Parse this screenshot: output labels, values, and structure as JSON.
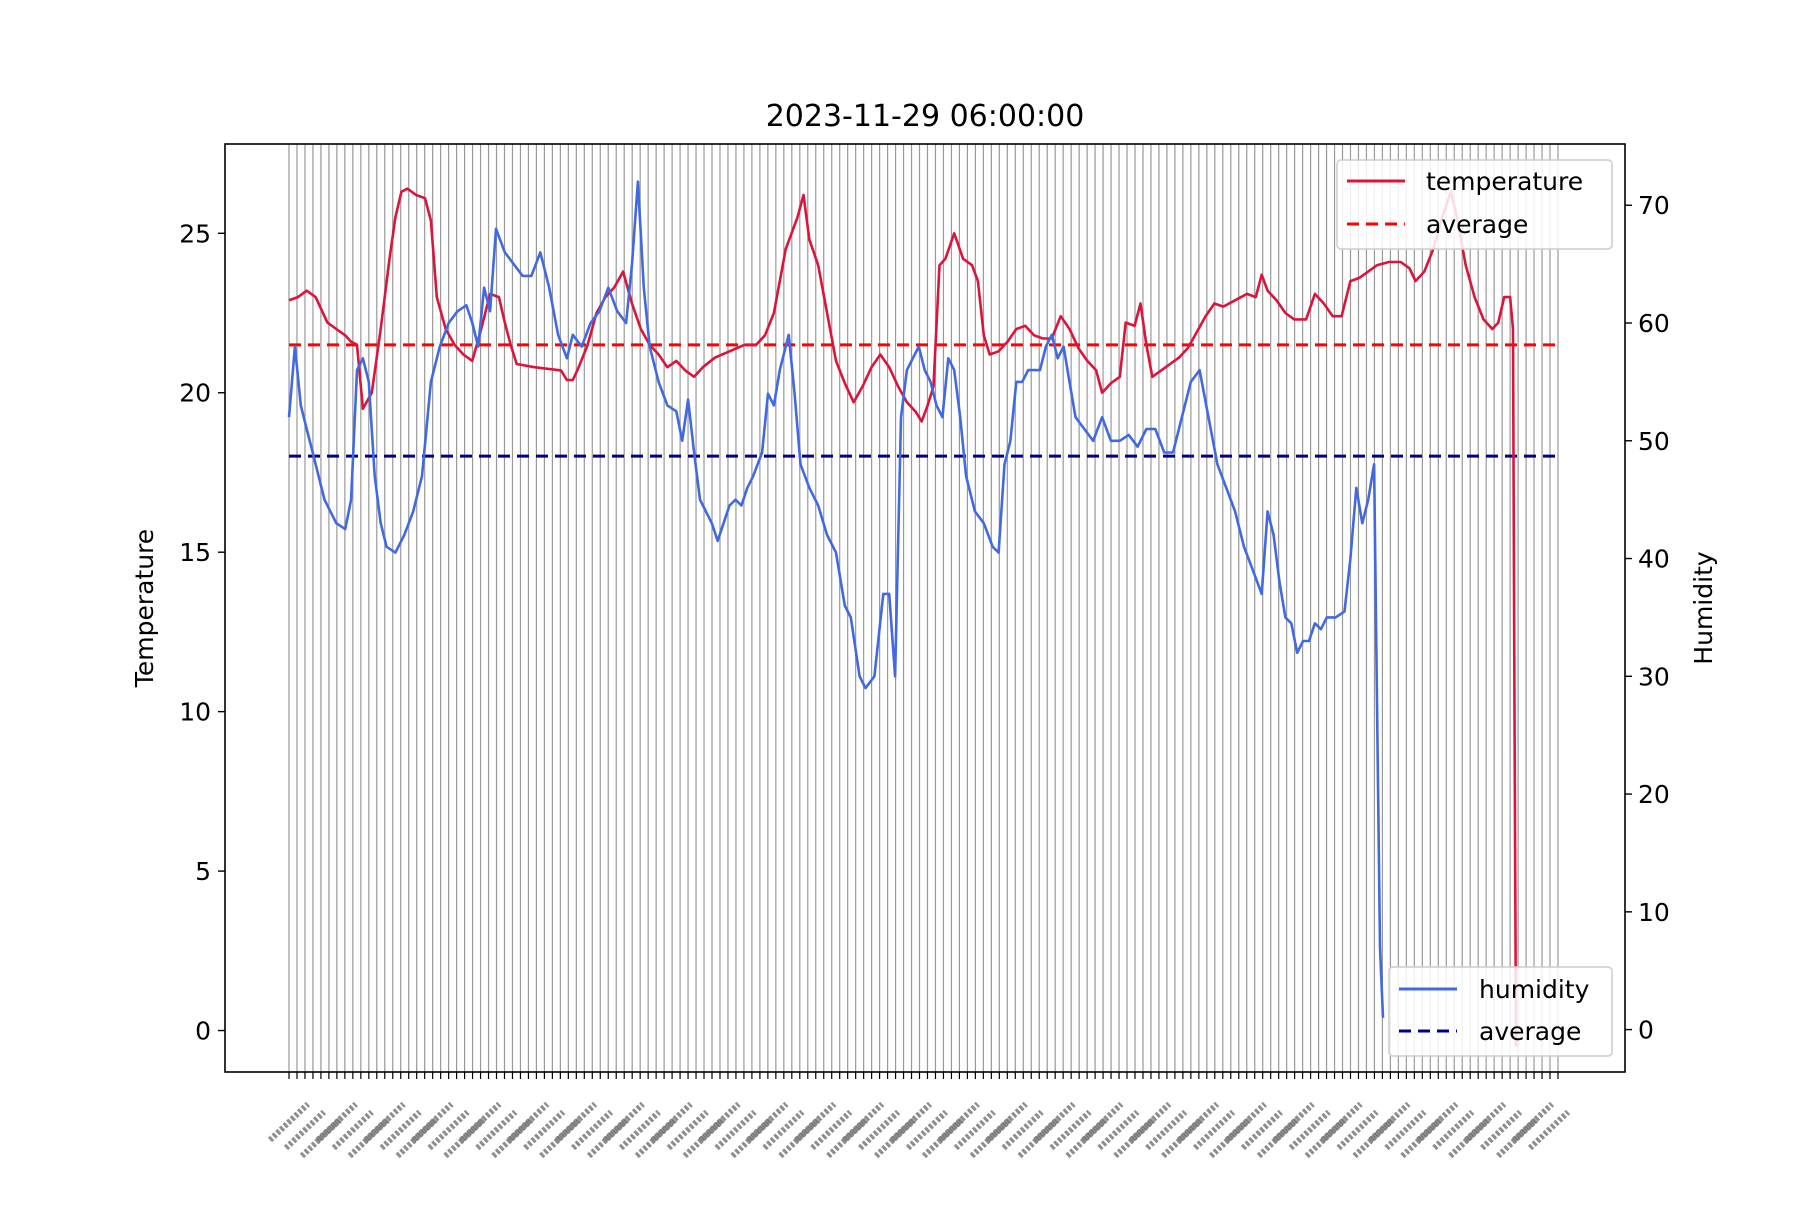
{
  "chart_data": {
    "type": "line",
    "title": "2023-11-29 06:00:00",
    "ylabel": "Temperature",
    "y2label": "Humidity",
    "xlabel": "",
    "ylim": [
      -1.3,
      27.8
    ],
    "y2lim": [
      -3.6,
      75.2
    ],
    "yticks": [
      0,
      5,
      10,
      15,
      20,
      25
    ],
    "y2ticks": [
      0,
      10,
      20,
      30,
      40,
      50,
      60,
      70
    ],
    "grid": "vertical lines at each x tick",
    "x_tick_labels": "dense overlapping time labels, illegible",
    "legend_primary": {
      "position": "upper-right",
      "entries": [
        {
          "label": "temperature",
          "color": "#dc143c",
          "style": "solid"
        },
        {
          "label": "average",
          "color": "#ff0000",
          "style": "dashed"
        }
      ]
    },
    "legend_secondary": {
      "position": "lower-right",
      "entries": [
        {
          "label": "humidity",
          "color": "#4169e1",
          "style": "solid"
        },
        {
          "label": "average",
          "color": "#00008b",
          "style": "dashed"
        }
      ]
    },
    "colors": {
      "temperature": "#dc143c",
      "temperature_avg": "#ff0000",
      "humidity": "#4169e1",
      "humidity_avg": "#00008b",
      "grid": "#999999"
    },
    "series": [
      {
        "name": "temperature",
        "axis": "left",
        "color": "#dc143c",
        "points": [
          [
            0,
            22.9
          ],
          [
            3,
            23
          ],
          [
            6,
            23.2
          ],
          [
            9,
            23
          ],
          [
            11,
            22.6
          ],
          [
            13,
            22.2
          ],
          [
            16,
            22
          ],
          [
            19,
            21.8
          ],
          [
            21,
            21.6
          ],
          [
            23,
            21.5
          ],
          [
            25,
            19.5
          ],
          [
            28,
            20
          ],
          [
            31,
            22
          ],
          [
            34,
            24.2
          ],
          [
            36,
            25.5
          ],
          [
            38,
            26.3
          ],
          [
            40,
            26.4
          ],
          [
            43,
            26.2
          ],
          [
            46,
            26.1
          ],
          [
            48,
            25.4
          ],
          [
            50,
            23
          ],
          [
            53,
            22
          ],
          [
            56,
            21.5
          ],
          [
            59,
            21.2
          ],
          [
            62,
            21
          ],
          [
            65,
            22
          ],
          [
            68,
            23.1
          ],
          [
            71,
            23
          ],
          [
            73,
            22.2
          ],
          [
            75,
            21.5
          ],
          [
            77,
            20.9
          ],
          [
            83,
            20.8
          ],
          [
            92,
            20.7
          ],
          [
            94,
            20.4
          ],
          [
            96,
            20.4
          ],
          [
            98,
            20.8
          ],
          [
            101,
            21.5
          ],
          [
            104,
            22.5
          ],
          [
            107,
            23
          ],
          [
            110,
            23.3
          ],
          [
            113,
            23.8
          ],
          [
            116,
            22.8
          ],
          [
            119,
            22
          ],
          [
            122,
            21.5
          ],
          [
            125,
            21.2
          ],
          [
            128,
            20.8
          ],
          [
            131,
            21
          ],
          [
            134,
            20.7
          ],
          [
            137,
            20.5
          ],
          [
            140,
            20.8
          ],
          [
            144,
            21.1
          ],
          [
            149,
            21.3
          ],
          [
            154,
            21.5
          ],
          [
            158,
            21.5
          ],
          [
            161,
            21.8
          ],
          [
            164,
            22.5
          ],
          [
            168,
            24.5
          ],
          [
            172,
            25.5
          ],
          [
            174,
            26.2
          ],
          [
            176,
            24.8
          ],
          [
            179,
            24
          ],
          [
            182,
            22.5
          ],
          [
            185,
            21
          ],
          [
            188,
            20.3
          ],
          [
            191,
            19.7
          ],
          [
            194,
            20.2
          ],
          [
            197,
            20.8
          ],
          [
            200,
            21.2
          ],
          [
            203,
            20.8
          ],
          [
            206,
            20.2
          ],
          [
            209,
            19.7
          ],
          [
            212,
            19.4
          ],
          [
            214,
            19.1
          ],
          [
            216,
            19.6
          ],
          [
            218,
            20.2
          ],
          [
            220,
            24
          ],
          [
            222,
            24.2
          ],
          [
            225,
            25
          ],
          [
            228,
            24.2
          ],
          [
            231,
            24
          ],
          [
            233,
            23.5
          ],
          [
            235,
            21.8
          ],
          [
            237,
            21.2
          ],
          [
            240,
            21.3
          ],
          [
            243,
            21.6
          ],
          [
            246,
            22
          ],
          [
            249,
            22.1
          ],
          [
            252,
            21.8
          ],
          [
            255,
            21.7
          ],
          [
            258,
            21.7
          ],
          [
            261,
            22.4
          ],
          [
            264,
            22
          ],
          [
            267,
            21.4
          ],
          [
            270,
            21
          ],
          [
            273,
            20.7
          ],
          [
            275,
            20
          ],
          [
            278,
            20.3
          ],
          [
            281,
            20.5
          ],
          [
            283,
            22.2
          ],
          [
            286,
            22.1
          ],
          [
            288,
            22.8
          ],
          [
            290,
            21.5
          ],
          [
            292,
            20.5
          ],
          [
            295,
            20.7
          ],
          [
            298,
            20.9
          ],
          [
            301,
            21.1
          ],
          [
            304,
            21.4
          ],
          [
            307,
            21.9
          ],
          [
            310,
            22.4
          ],
          [
            313,
            22.8
          ],
          [
            316,
            22.7
          ],
          [
            320,
            22.9
          ],
          [
            324,
            23.1
          ],
          [
            327,
            23
          ],
          [
            329,
            23.7
          ],
          [
            331,
            23.2
          ],
          [
            334,
            22.9
          ],
          [
            337,
            22.5
          ],
          [
            340,
            22.3
          ],
          [
            344,
            22.3
          ],
          [
            347,
            23.1
          ],
          [
            350,
            22.8
          ],
          [
            353,
            22.4
          ],
          [
            356,
            22.4
          ],
          [
            359,
            23.5
          ],
          [
            362,
            23.6
          ],
          [
            365,
            23.8
          ],
          [
            368,
            24
          ],
          [
            372,
            24.1
          ],
          [
            376,
            24.1
          ],
          [
            379,
            23.9
          ],
          [
            381,
            23.5
          ],
          [
            384,
            23.8
          ],
          [
            387,
            24.5
          ],
          [
            390,
            25.5
          ],
          [
            393,
            26.3
          ],
          [
            395,
            25.5
          ],
          [
            398,
            24
          ],
          [
            401,
            23
          ],
          [
            404,
            22.3
          ],
          [
            407,
            22
          ],
          [
            409,
            22.2
          ],
          [
            411,
            23
          ],
          [
            413,
            23
          ],
          [
            414,
            22
          ],
          [
            414.5,
            10
          ],
          [
            415,
            -0.5
          ]
        ]
      },
      {
        "name": "humidity",
        "axis": "right",
        "color": "#4169e1",
        "points": [
          [
            0,
            52
          ],
          [
            2,
            58
          ],
          [
            4,
            53
          ],
          [
            6,
            51
          ],
          [
            8,
            49
          ],
          [
            10,
            47
          ],
          [
            12,
            45
          ],
          [
            14,
            44
          ],
          [
            16,
            43
          ],
          [
            19,
            42.5
          ],
          [
            21,
            45
          ],
          [
            23,
            56
          ],
          [
            25,
            57
          ],
          [
            27,
            55
          ],
          [
            29,
            47
          ],
          [
            31,
            43
          ],
          [
            33,
            41
          ],
          [
            36,
            40.5
          ],
          [
            39,
            42
          ],
          [
            42,
            44
          ],
          [
            45,
            47
          ],
          [
            48,
            55
          ],
          [
            51,
            58
          ],
          [
            54,
            60
          ],
          [
            57,
            61
          ],
          [
            60,
            61.5
          ],
          [
            62,
            60
          ],
          [
            64,
            58
          ],
          [
            66,
            63
          ],
          [
            68,
            61
          ],
          [
            70,
            68
          ],
          [
            73,
            66
          ],
          [
            76,
            65
          ],
          [
            79,
            64
          ],
          [
            82,
            64
          ],
          [
            85,
            66
          ],
          [
            88,
            63
          ],
          [
            91,
            59
          ],
          [
            94,
            57
          ],
          [
            96,
            59
          ],
          [
            99,
            58
          ],
          [
            102,
            60
          ],
          [
            105,
            61
          ],
          [
            108,
            63
          ],
          [
            111,
            61
          ],
          [
            114,
            60
          ],
          [
            116,
            65
          ],
          [
            118,
            72
          ],
          [
            120,
            63
          ],
          [
            122,
            58
          ],
          [
            125,
            55
          ],
          [
            128,
            53
          ],
          [
            131,
            52.5
          ],
          [
            133,
            50
          ],
          [
            135,
            53.5
          ],
          [
            137,
            49
          ],
          [
            139,
            45
          ],
          [
            141,
            44
          ],
          [
            143,
            43
          ],
          [
            145,
            41.5
          ],
          [
            147,
            43
          ],
          [
            149,
            44.5
          ],
          [
            151,
            45
          ],
          [
            153,
            44.5
          ],
          [
            155,
            46
          ],
          [
            157,
            47
          ],
          [
            160,
            49
          ],
          [
            162,
            54
          ],
          [
            164,
            53
          ],
          [
            166,
            56
          ],
          [
            169,
            59
          ],
          [
            171,
            54
          ],
          [
            173,
            48
          ],
          [
            176,
            46
          ],
          [
            179,
            44.5
          ],
          [
            182,
            42
          ],
          [
            185,
            40.5
          ],
          [
            188,
            36
          ],
          [
            190,
            35
          ],
          [
            193,
            30
          ],
          [
            195,
            29
          ],
          [
            198,
            30
          ],
          [
            201,
            37
          ],
          [
            203,
            37
          ],
          [
            205,
            30
          ],
          [
            207,
            52
          ],
          [
            209,
            56
          ],
          [
            211,
            57
          ],
          [
            213,
            58
          ],
          [
            215,
            56
          ],
          [
            217,
            55
          ],
          [
            219,
            53
          ],
          [
            221,
            52
          ],
          [
            223,
            57
          ],
          [
            225,
            56
          ],
          [
            227,
            52
          ],
          [
            229,
            47
          ],
          [
            232,
            44
          ],
          [
            235,
            43
          ],
          [
            238,
            41
          ],
          [
            240,
            40.5
          ],
          [
            242,
            48
          ],
          [
            244,
            50
          ],
          [
            246,
            55
          ],
          [
            248,
            55
          ],
          [
            250,
            56
          ],
          [
            252,
            56
          ],
          [
            254,
            56
          ],
          [
            256,
            58
          ],
          [
            258,
            59
          ],
          [
            260,
            57
          ],
          [
            262,
            58
          ],
          [
            264,
            55
          ],
          [
            266,
            52
          ],
          [
            269,
            51
          ],
          [
            272,
            50
          ],
          [
            275,
            52
          ],
          [
            278,
            50
          ],
          [
            281,
            50
          ],
          [
            284,
            50.5
          ],
          [
            287,
            49.5
          ],
          [
            290,
            51
          ],
          [
            293,
            51
          ],
          [
            296,
            49
          ],
          [
            299,
            49
          ],
          [
            302,
            52
          ],
          [
            305,
            55
          ],
          [
            308,
            56
          ],
          [
            311,
            52
          ],
          [
            314,
            48
          ],
          [
            317,
            46
          ],
          [
            320,
            44
          ],
          [
            323,
            41
          ],
          [
            326,
            39
          ],
          [
            329,
            37
          ],
          [
            331,
            44
          ],
          [
            333,
            42
          ],
          [
            335,
            38
          ],
          [
            337,
            35
          ],
          [
            339,
            34.5
          ],
          [
            341,
            32
          ],
          [
            343,
            33
          ],
          [
            345,
            33
          ],
          [
            347,
            34.5
          ],
          [
            349,
            34
          ],
          [
            351,
            35
          ],
          [
            354,
            35
          ],
          [
            357,
            35.5
          ],
          [
            359,
            40
          ],
          [
            361,
            46
          ],
          [
            363,
            43
          ],
          [
            365,
            45
          ],
          [
            367,
            48
          ],
          [
            369,
            7
          ],
          [
            370,
            1
          ]
        ]
      }
    ],
    "averages": {
      "temperature": 21.5,
      "humidity": 48.7
    }
  }
}
